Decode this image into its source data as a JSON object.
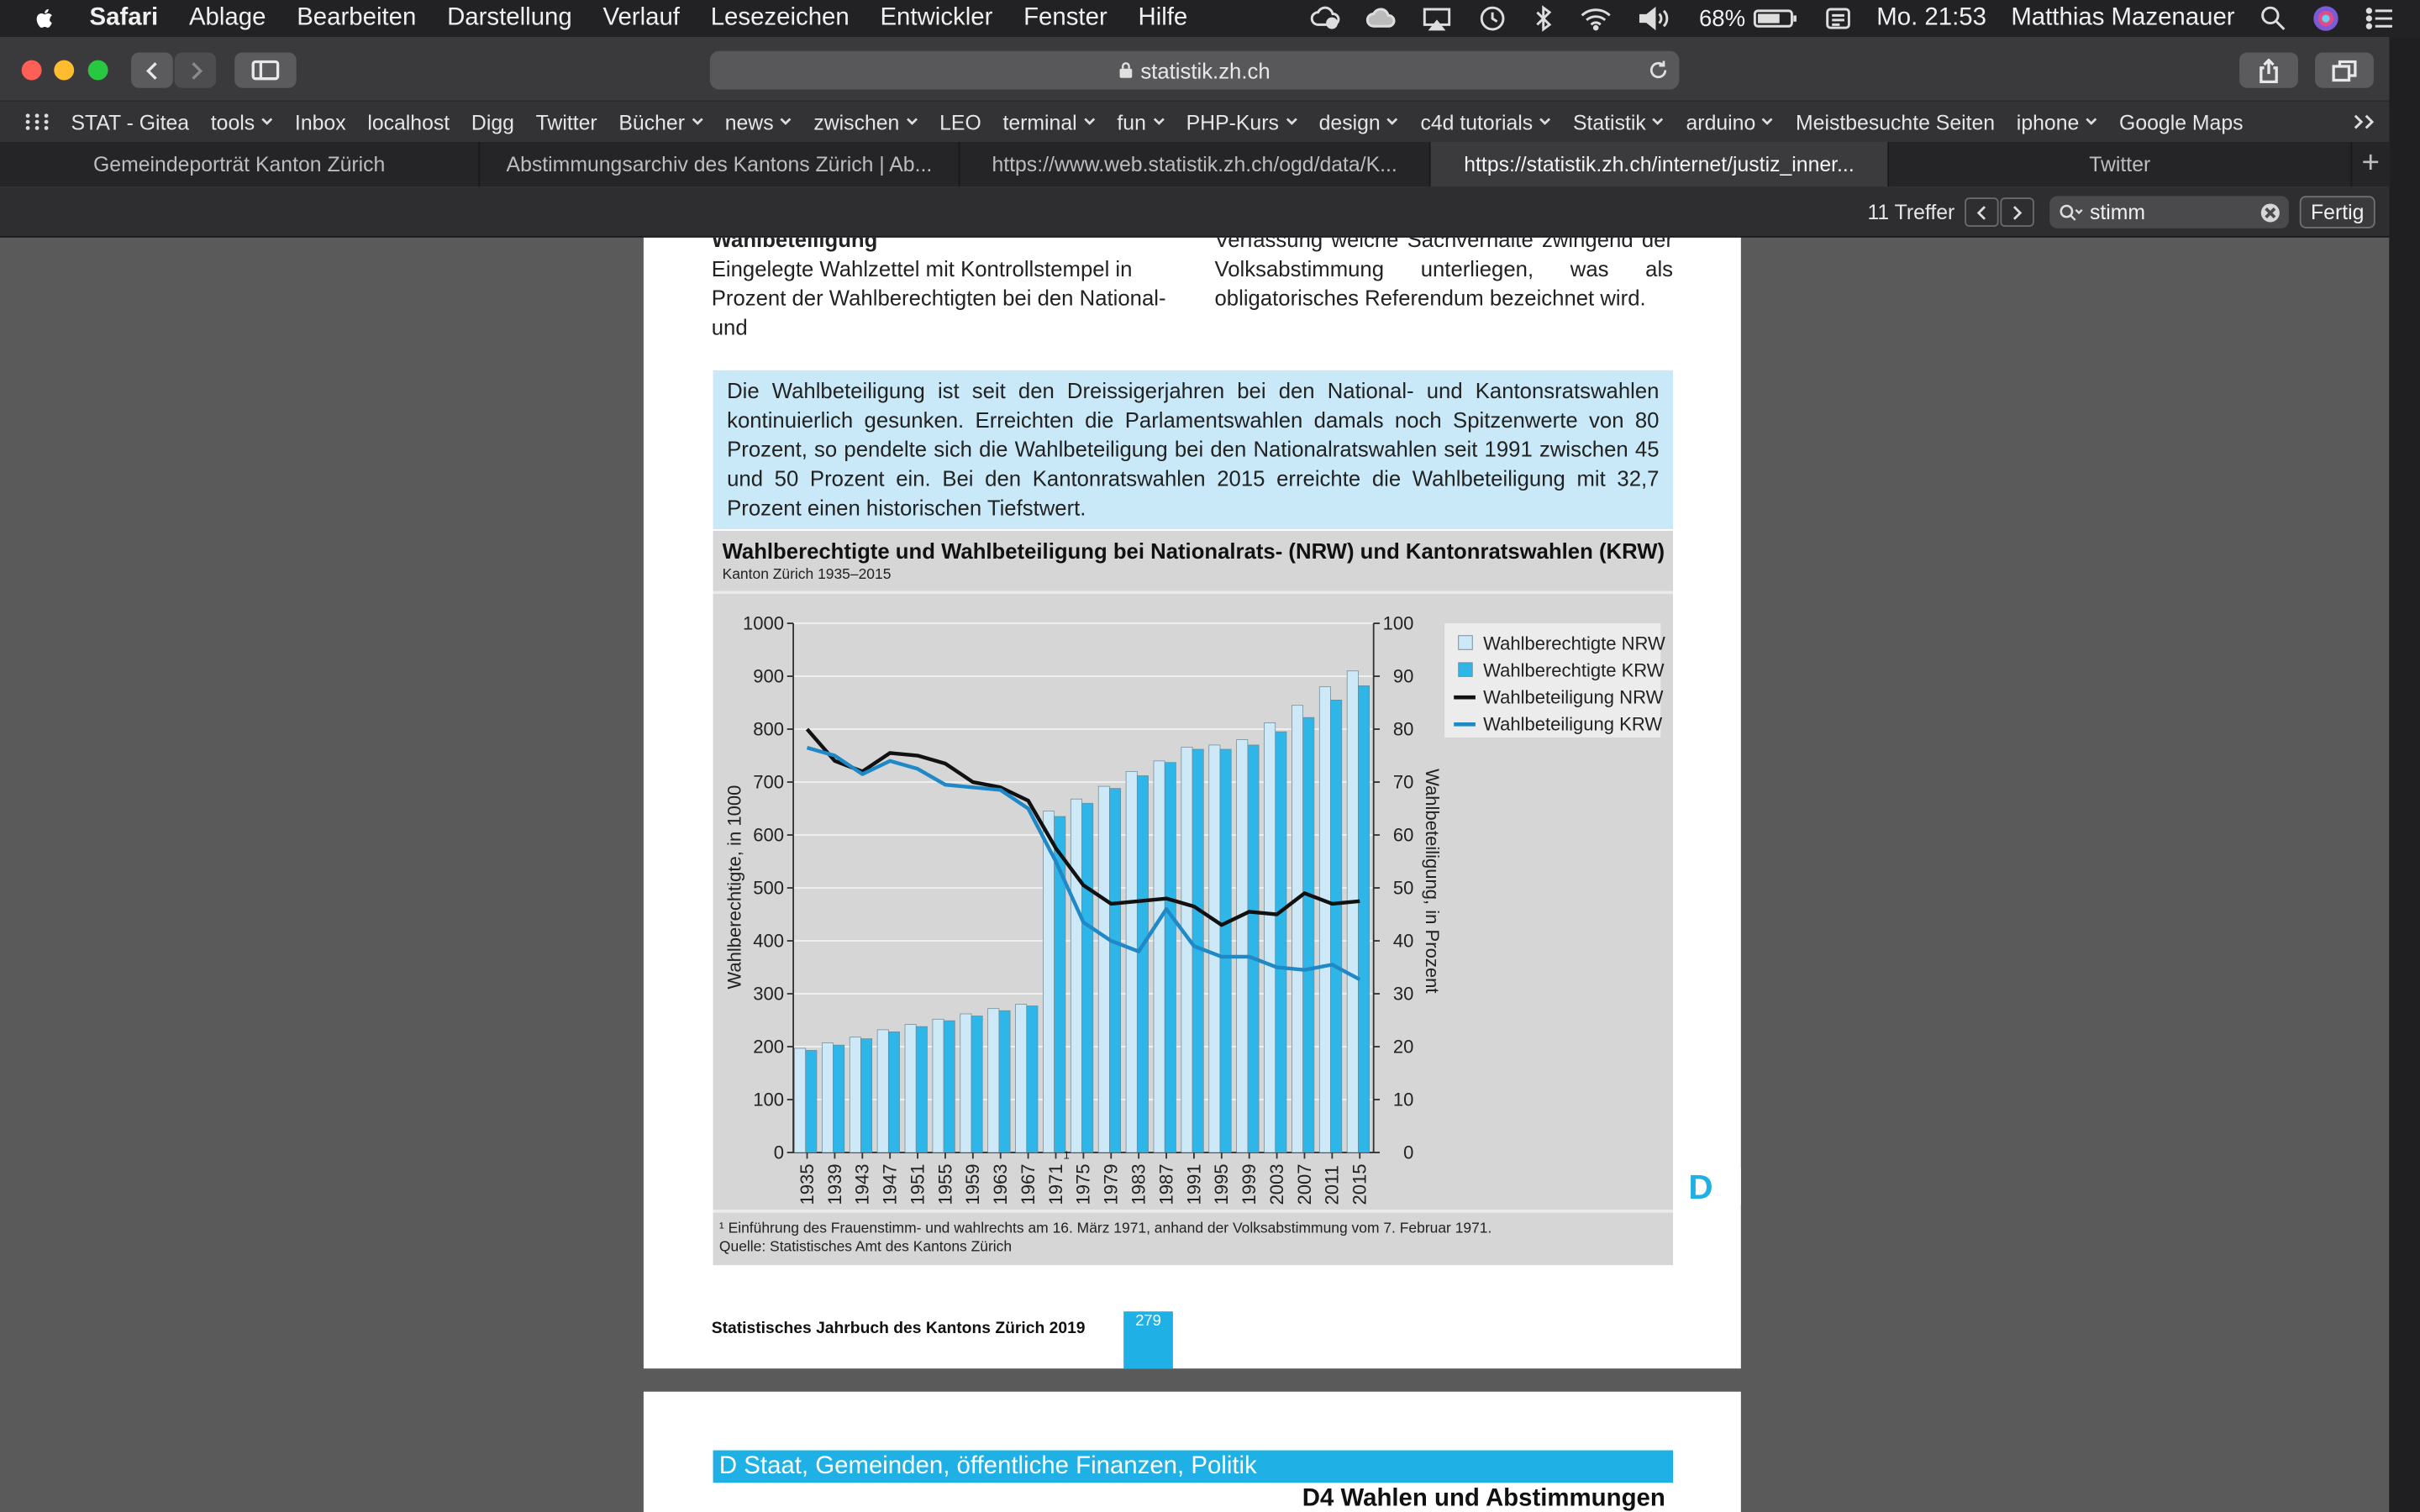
{
  "menubar": {
    "app": "Safari",
    "items": [
      "Ablage",
      "Bearbeiten",
      "Darstellung",
      "Verlauf",
      "Lesezeichen",
      "Entwickler",
      "Fenster",
      "Hilfe"
    ],
    "battery": "68%",
    "clock": "Mo. 21:53",
    "user": "Matthias Mazenauer"
  },
  "toolbar": {
    "address": "statistik.zh.ch"
  },
  "bookmarks": [
    {
      "label": "STAT - Gitea",
      "menu": false
    },
    {
      "label": "tools",
      "menu": true
    },
    {
      "label": "Inbox",
      "menu": false
    },
    {
      "label": "localhost",
      "menu": false
    },
    {
      "label": "Digg",
      "menu": false
    },
    {
      "label": "Twitter",
      "menu": false
    },
    {
      "label": "Bücher",
      "menu": true
    },
    {
      "label": "news",
      "menu": true
    },
    {
      "label": "zwischen",
      "menu": true
    },
    {
      "label": "LEO",
      "menu": false
    },
    {
      "label": "terminal",
      "menu": true
    },
    {
      "label": "fun",
      "menu": true
    },
    {
      "label": "PHP-Kurs",
      "menu": true
    },
    {
      "label": "design",
      "menu": true
    },
    {
      "label": "c4d tutorials",
      "menu": true
    },
    {
      "label": "Statistik",
      "menu": true
    },
    {
      "label": "arduino",
      "menu": true
    },
    {
      "label": "Meistbesuchte Seiten",
      "menu": false
    },
    {
      "label": "iphone",
      "menu": true
    },
    {
      "label": "Google Maps",
      "menu": false
    }
  ],
  "tabs": [
    {
      "label": "Gemeindeporträt Kanton Zürich",
      "active": false
    },
    {
      "label": "Abstimmungsarchiv des Kantons Zürich | Ab...",
      "active": false
    },
    {
      "label": "https://www.web.statistik.zh.ch/ogd/data/K...",
      "active": false
    },
    {
      "label": "https://statistik.zh.ch/internet/justiz_inner...",
      "active": true
    },
    {
      "label": "Twitter",
      "active": false
    }
  ],
  "findbar": {
    "count": "11 Treffer",
    "query": "stimm",
    "done_label": "Fertig"
  },
  "document": {
    "left_heading": "Wahlbeteiligung",
    "left_text": "Eingelegte Wahlzettel mit Kontrollstempel in Prozent der Wahlberechtigten bei den National- und",
    "right_text": "Verfassung welche Sachverhalte zwingend der Volksabstimmung unterliegen, was als obligatorisches Referendum bezeichnet wird.",
    "infobox": "Die Wahlbeteiligung ist seit den Dreissigerjahren bei den National- und Kantonsratswahlen kontinuierlich gesunken. Erreichten die Parlamentswahlen damals noch Spitzenwerte von 80 Prozent, so pendelte sich die Wahlbeteiligung bei den Nationalratswahlen seit 1991 zwischen 45 und 50 Prozent ein. Bei den Kantonratswahlen 2015 erreichte die Wahlbeteiligung mit 32,7 Prozent einen historischen Tiefstwert.",
    "footnote": "¹  Einführung des Frauenstimm- und wahlrechts am 16. März 1971, anhand der Volksabstimmung vom 7. Februar 1971.",
    "source": "Quelle: Statistisches Amt des Kantons Zürich",
    "footer_title": "Statistisches Jahrbuch des Kantons Zürich 2019",
    "page_number": "279",
    "side_tab": "D",
    "page2_bar": "D Staat, Gemeinden, öffentliche Finanzen, Politik",
    "page2_sub": "D4 Wahlen und Abstimmungen"
  },
  "chart_data": {
    "type": "bar",
    "title": "Wahlberechtigte und Wahlbeteiligung bei Nationalrats- (NRW) und Kantonratswahlen (KRW)",
    "subtitle": "Kanton Zürich 1935–2015",
    "ylabel": "Wahlberechtigte, in 1000",
    "y2label": "Wahlbeteiligung, in Prozent",
    "ylim": [
      0,
      1000
    ],
    "y2lim": [
      0,
      100
    ],
    "yticks": [
      0,
      100,
      200,
      300,
      400,
      500,
      600,
      700,
      800,
      900,
      1000
    ],
    "y2ticks": [
      0,
      10,
      20,
      30,
      40,
      50,
      60,
      70,
      80,
      90,
      100
    ],
    "grid": true,
    "legend": "top-right",
    "categories": [
      "1935",
      "1939",
      "1943",
      "1947",
      "1951",
      "1955",
      "1959",
      "1963",
      "1967",
      "1971",
      "1975",
      "1979",
      "1983",
      "1987",
      "1991",
      "1995",
      "1999",
      "2003",
      "2007",
      "2011",
      "2015"
    ],
    "footnote_marker": {
      "category": "1971",
      "mark": "1"
    },
    "series": [
      {
        "name": "Wahlberechtigte NRW",
        "kind": "bar",
        "axis": "left",
        "color": "#cde9f7",
        "values": [
          197,
          207,
          218,
          232,
          242,
          252,
          262,
          272,
          280,
          645,
          668,
          692,
          720,
          740,
          766,
          770,
          780,
          812,
          845,
          880,
          910
        ]
      },
      {
        "name": "Wahlberechtigte KRW",
        "kind": "bar",
        "axis": "left",
        "color": "#2fb6e8",
        "values": [
          193,
          203,
          215,
          228,
          238,
          249,
          258,
          268,
          277,
          635,
          660,
          688,
          712,
          737,
          762,
          762,
          770,
          795,
          822,
          855,
          882
        ]
      },
      {
        "name": "Wahlbeteiligung NRW",
        "kind": "line",
        "axis": "right",
        "color": "#111111",
        "values": [
          80,
          74,
          72,
          75.5,
          75,
          73.5,
          70,
          69,
          66.5,
          57.5,
          50.5,
          47,
          47.5,
          48,
          46.5,
          43,
          45.5,
          45,
          49,
          47,
          47.5
        ]
      },
      {
        "name": "Wahlbeteiligung KRW",
        "kind": "line",
        "axis": "right",
        "color": "#1f88c6",
        "values": [
          76.5,
          75,
          71.5,
          74,
          72.5,
          69.5,
          69,
          68.5,
          65,
          55,
          43.5,
          40,
          38,
          46,
          39,
          37,
          37,
          35,
          34.5,
          35.5,
          32.7
        ]
      }
    ]
  }
}
